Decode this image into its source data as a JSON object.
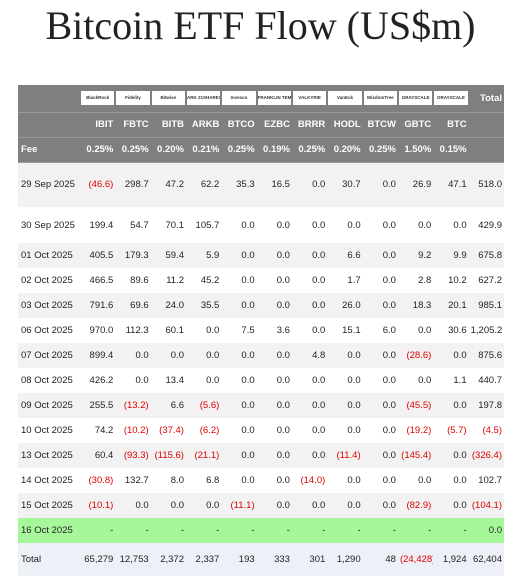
{
  "title": "Bitcoin ETF Flow (US$m)",
  "table": {
    "logos": [
      "BlackRock",
      "Fidelity",
      "Bitwise",
      "ARK 21SHARES",
      "Invesco",
      "FRANKLIN TEMPLETON",
      "VALKYRIE",
      "VanEck",
      "WisdomTree",
      "GRAYSCALE",
      "GRAYSCALE"
    ],
    "total_label": "Total",
    "tickers": [
      "IBIT",
      "FBTC",
      "BITB",
      "ARKB",
      "BTCO",
      "EZBC",
      "BRRR",
      "HODL",
      "BTCW",
      "GBTC",
      "BTC"
    ],
    "fee_label": "Fee",
    "fees": [
      "0.25%",
      "0.25%",
      "0.20%",
      "0.21%",
      "0.25%",
      "0.19%",
      "0.25%",
      "0.20%",
      "0.25%",
      "1.50%",
      "0.15%"
    ],
    "rows": [
      [
        "29 Sep 2025",
        "(46.6)",
        "298.7",
        "47.2",
        "62.2",
        "35.3",
        "16.5",
        "0.0",
        "30.7",
        "0.0",
        "26.9",
        "47.1",
        "518.0"
      ],
      [
        "30 Sep 2025",
        "199.4",
        "54.7",
        "70.1",
        "105.7",
        "0.0",
        "0.0",
        "0.0",
        "0.0",
        "0.0",
        "0.0",
        "0.0",
        "429.9"
      ],
      [
        "01 Oct 2025",
        "405.5",
        "179.3",
        "59.4",
        "5.9",
        "0.0",
        "0.0",
        "0.0",
        "6.6",
        "0.0",
        "9.2",
        "9.9",
        "675.8"
      ],
      [
        "02 Oct 2025",
        "466.5",
        "89.6",
        "11.2",
        "45.2",
        "0.0",
        "0.0",
        "0.0",
        "1.7",
        "0.0",
        "2.8",
        "10.2",
        "627.2"
      ],
      [
        "03 Oct 2025",
        "791.6",
        "69.6",
        "24.0",
        "35.5",
        "0.0",
        "0.0",
        "0.0",
        "26.0",
        "0.0",
        "18.3",
        "20.1",
        "985.1"
      ],
      [
        "06 Oct 2025",
        "970.0",
        "112.3",
        "60.1",
        "0.0",
        "7.5",
        "3.6",
        "0.0",
        "15.1",
        "6.0",
        "0.0",
        "30.6",
        "1,205.2"
      ],
      [
        "07 Oct 2025",
        "899.4",
        "0.0",
        "0.0",
        "0.0",
        "0.0",
        "0.0",
        "4.8",
        "0.0",
        "0.0",
        "(28.6)",
        "0.0",
        "875.6"
      ],
      [
        "08 Oct 2025",
        "426.2",
        "0.0",
        "13.4",
        "0.0",
        "0.0",
        "0.0",
        "0.0",
        "0.0",
        "0.0",
        "0.0",
        "1.1",
        "440.7"
      ],
      [
        "09 Oct 2025",
        "255.5",
        "(13.2)",
        "6.6",
        "(5.6)",
        "0.0",
        "0.0",
        "0.0",
        "0.0",
        "0.0",
        "(45.5)",
        "0.0",
        "197.8"
      ],
      [
        "10 Oct 2025",
        "74.2",
        "(10.2)",
        "(37.4)",
        "(6.2)",
        "0.0",
        "0.0",
        "0.0",
        "0.0",
        "0.0",
        "(19.2)",
        "(5.7)",
        "(4.5)"
      ],
      [
        "13 Oct 2025",
        "60.4",
        "(93.3)",
        "(115.6)",
        "(21.1)",
        "0.0",
        "0.0",
        "0.0",
        "(11.4)",
        "0.0",
        "(145.4)",
        "0.0",
        "(326.4)"
      ],
      [
        "14 Oct 2025",
        "(30.8)",
        "132.7",
        "8.0",
        "6.8",
        "0.0",
        "0.0",
        "(14.0)",
        "0.0",
        "0.0",
        "0.0",
        "0.0",
        "102.7"
      ],
      [
        "15 Oct 2025",
        "(10.1)",
        "0.0",
        "0.0",
        "0.0",
        "(11.1)",
        "0.0",
        "0.0",
        "0.0",
        "0.0",
        "(82.9)",
        "0.0",
        "(104.1)"
      ],
      [
        "16 Oct 2025",
        "-",
        "-",
        "-",
        "-",
        "-",
        "-",
        "-",
        "-",
        "-",
        "-",
        "-",
        "0.0"
      ]
    ],
    "total_row": [
      "Total",
      "65,279",
      "12,753",
      "2,372",
      "2,337",
      "193",
      "333",
      "301",
      "1,290",
      "48",
      "(24,428)",
      "1,924",
      "62,404"
    ]
  }
}
